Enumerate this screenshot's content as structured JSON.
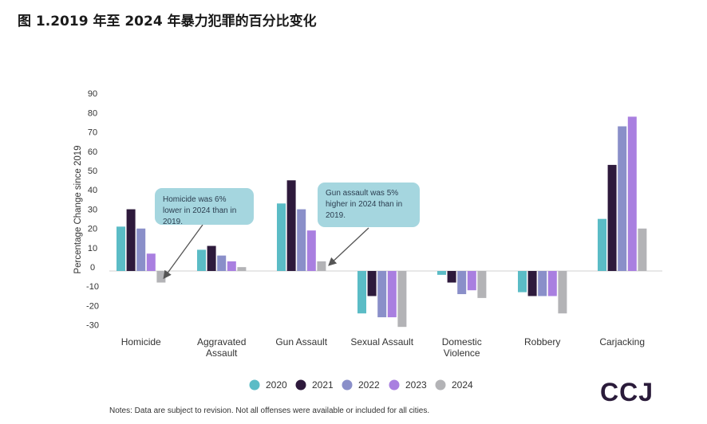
{
  "title": "图 1.2019 年至 2024 年暴力犯罪的百分比变化",
  "note": "Notes: Data are subject to revision. Not all offenses were available or included for all cities.",
  "logo": "CCJ",
  "callouts": [
    {
      "text": "Homicide was 6% lower in 2024 than in 2019."
    },
    {
      "text": "Gun assault was 5% higher in 2024 than in 2019."
    }
  ],
  "colors": {
    "2020": "#5bbcc6",
    "2021": "#2e1a3c",
    "2022": "#8a8fc9",
    "2023": "#a97fe0",
    "2024": "#b3b3b6"
  },
  "chart_data": {
    "type": "bar",
    "title": "图 1.2019 年至 2024 年暴力犯罪的百分比变化",
    "xlabel": "",
    "ylabel": "Percentage Change since 2019",
    "ylim": [
      -30,
      90
    ],
    "yticks": [
      90,
      80,
      70,
      60,
      50,
      40,
      30,
      20,
      10,
      0,
      -10,
      -20,
      -30
    ],
    "legend_position": "bottom",
    "categories": [
      [
        "Homicide"
      ],
      [
        "Aggravated",
        "Assault"
      ],
      [
        "Gun Assault"
      ],
      [
        "Sexual Assault"
      ],
      [
        "Domestic",
        "Violence"
      ],
      [
        "Robbery"
      ],
      [
        "Carjacking"
      ]
    ],
    "series": [
      {
        "name": "2020",
        "values": [
          23,
          11,
          35,
          -22,
          -2,
          -11,
          27
        ]
      },
      {
        "name": "2021",
        "values": [
          32,
          13,
          47,
          -13,
          -6,
          -13,
          55
        ]
      },
      {
        "name": "2022",
        "values": [
          22,
          8,
          32,
          -24,
          -12,
          -13,
          75
        ]
      },
      {
        "name": "2023",
        "values": [
          9,
          5,
          21,
          -24,
          -10,
          -13,
          80
        ]
      },
      {
        "name": "2024",
        "values": [
          -6,
          2,
          5,
          -29,
          -14,
          -22,
          22
        ]
      }
    ]
  }
}
